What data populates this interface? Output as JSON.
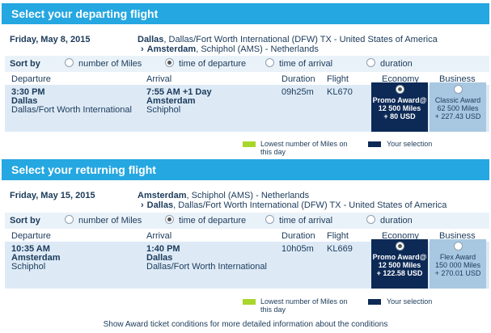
{
  "colors": {
    "header_bg": "#25a7e1",
    "economy_bg": "#0d2a56",
    "business_bg": "#a8c8e2",
    "lowest_swatch": "#a8d62a",
    "selection_swatch": "#0d2a56"
  },
  "sections": [
    {
      "title": "Select your departing flight",
      "date": "Friday, May 8, 2015",
      "origin": {
        "city": "Dallas",
        "rest": ", Dallas/Fort Worth International (DFW) TX - United States of America"
      },
      "destination": {
        "city": "Amsterdam",
        "rest": ", Schiphol (AMS) - Netherlands"
      },
      "sort": {
        "label": "Sort by",
        "options": [
          "number of Miles",
          "time of departure",
          "time of arrival",
          "duration"
        ],
        "selected": "time of departure"
      },
      "columns": {
        "departure": "Departure",
        "arrival": "Arrival",
        "duration": "Duration",
        "flight": "Flight",
        "economy": "Economy",
        "business": "Business"
      },
      "flight": {
        "dep_time": "3:30 PM",
        "dep_city": "Dallas",
        "dep_airport": "Dallas/Fort Worth International",
        "arr_time": "7:55 AM +1 Day",
        "arr_city": "Amsterdam",
        "arr_airport": "Schiphol",
        "duration": "09h25m",
        "flight_no": "KL670",
        "economy": {
          "name": "Promo Award@",
          "miles": "12 500 Miles",
          "fee": "+ 80 USD"
        },
        "business": {
          "name": "Classic Award",
          "miles": "62 500 Miles",
          "fee": "+ 227.43 USD"
        }
      },
      "legend": {
        "lowest": "Lowest number of Miles on this day",
        "selection": "Your selection"
      }
    },
    {
      "title": "Select your returning flight",
      "date": "Friday, May 15, 2015",
      "origin": {
        "city": "Amsterdam",
        "rest": ", Schiphol (AMS) - Netherlands"
      },
      "destination": {
        "city": "Dallas",
        "rest": ", Dallas/Fort Worth International (DFW) TX - United States of America"
      },
      "sort": {
        "label": "Sort by",
        "options": [
          "number of Miles",
          "time of departure",
          "time of arrival",
          "duration"
        ],
        "selected": "time of departure"
      },
      "columns": {
        "departure": "Departure",
        "arrival": "Arrival",
        "duration": "Duration",
        "flight": "Flight",
        "economy": "Economy",
        "business": "Business"
      },
      "flight": {
        "dep_time": "10:35 AM",
        "dep_city": "Amsterdam",
        "dep_airport": "Schiphol",
        "arr_time": "1:40 PM",
        "arr_city": "Dallas",
        "arr_airport": "Dallas/Fort Worth International",
        "duration": "10h05m",
        "flight_no": "KL669",
        "economy": {
          "name": "Promo Award@",
          "miles": "12 500 Miles",
          "fee": "+ 122.58 USD"
        },
        "business": {
          "name": "Flex Award",
          "miles": "150 000 Miles",
          "fee": "+ 270.01 USD"
        }
      },
      "legend": {
        "lowest": "Lowest number of Miles on this day",
        "selection": "Your selection"
      }
    }
  ],
  "footer": {
    "link": "Show Award ticket conditions",
    "rest": " for more detailed information about the conditions"
  }
}
